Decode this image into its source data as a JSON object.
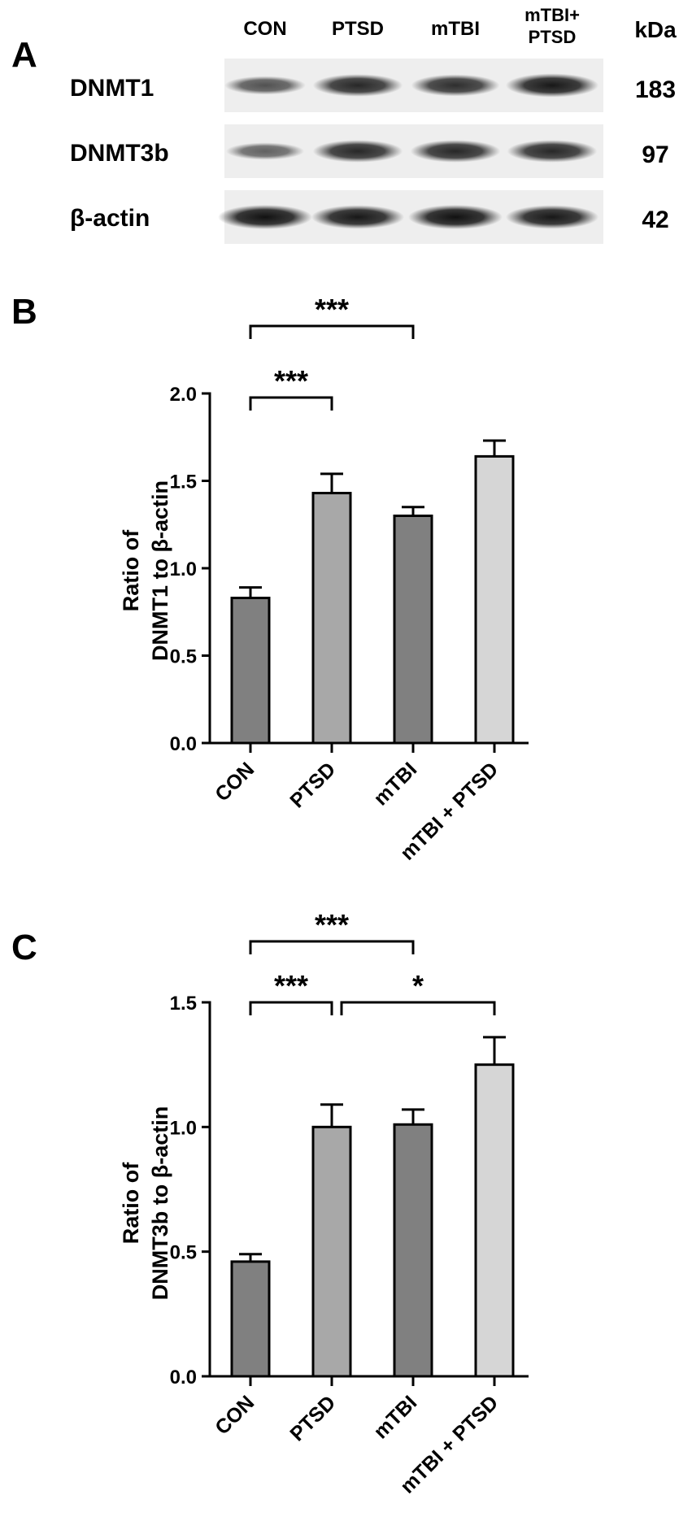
{
  "panel_a": {
    "letter": "A",
    "lanes": [
      "CON",
      "PTSD",
      "mTBI",
      "mTBI+",
      "PTSD"
    ],
    "kda_header": "kDa",
    "rows": [
      {
        "label": "DNMT1",
        "kda": "183",
        "intensities": [
          0.55,
          0.85,
          0.8,
          0.95
        ]
      },
      {
        "label": "DNMT3b",
        "kda": "97",
        "intensities": [
          0.45,
          0.85,
          0.85,
          0.85
        ]
      },
      {
        "label": "β-actin",
        "kda": "42",
        "intensities": [
          1.0,
          0.95,
          1.0,
          0.95
        ]
      }
    ]
  },
  "chart_data": [
    {
      "panel": "B",
      "type": "bar",
      "categories": [
        "CON",
        "PTSD",
        "mTBI",
        "mTBI + PTSD"
      ],
      "values": [
        0.83,
        1.43,
        1.3,
        1.64
      ],
      "errors": [
        0.06,
        0.11,
        0.05,
        0.09
      ],
      "bar_colors": [
        "#808080",
        "#a8a8a8",
        "#808080",
        "#d6d6d6"
      ],
      "ylabel_line1": "Ratio of",
      "ylabel_line2": "DNMT1 to β-actin",
      "ylim": [
        0,
        2.0
      ],
      "yticks": [
        "0.0",
        "0.5",
        "1.0",
        "1.5",
        "2.0"
      ],
      "significance": [
        {
          "from": 0,
          "to": 2,
          "label": "***",
          "level": 2
        },
        {
          "from": 0,
          "to": 1,
          "label": "***",
          "level": 1
        }
      ]
    },
    {
      "panel": "C",
      "type": "bar",
      "categories": [
        "CON",
        "PTSD",
        "mTBI",
        "mTBI + PTSD"
      ],
      "values": [
        0.46,
        1.0,
        1.01,
        1.25
      ],
      "errors": [
        0.03,
        0.09,
        0.06,
        0.11
      ],
      "bar_colors": [
        "#808080",
        "#a8a8a8",
        "#808080",
        "#d6d6d6"
      ],
      "ylabel_line1": "Ratio of",
      "ylabel_line2": "DNMT3b to β-actin",
      "ylim": [
        0,
        1.5
      ],
      "yticks": [
        "0.0",
        "0.5",
        "1.0",
        "1.5"
      ],
      "significance": [
        {
          "from": 0,
          "to": 2,
          "label": "***",
          "level": 2
        },
        {
          "from": 0,
          "to": 1,
          "label": "***",
          "level": 1
        },
        {
          "from": 1,
          "to": 3,
          "label": "*",
          "level": 1
        }
      ]
    }
  ]
}
